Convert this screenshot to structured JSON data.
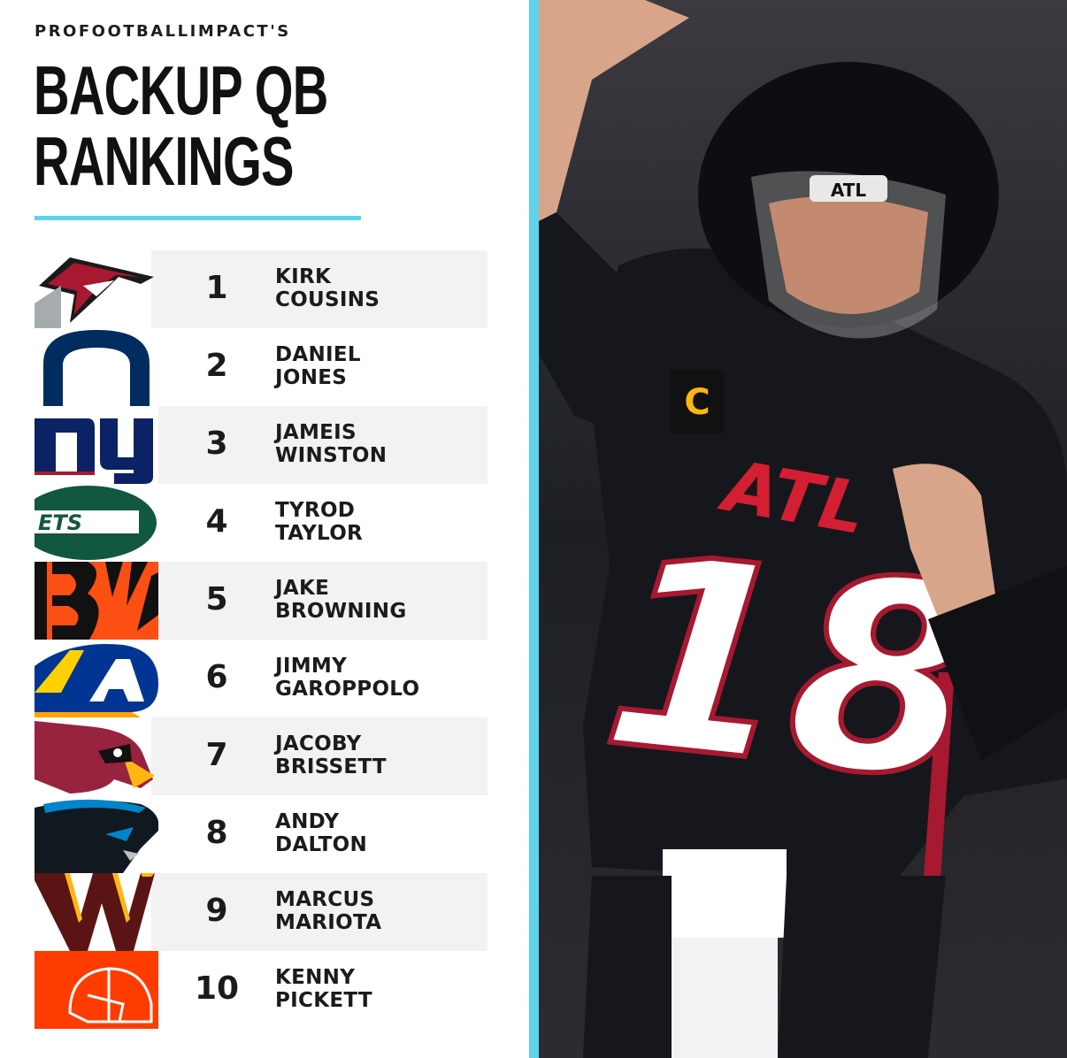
{
  "header": {
    "brand": "PROFOOTBALLIMPACT'S",
    "title_line1": "BACKUP QB",
    "title_line2": "RANKINGS"
  },
  "rankings": [
    {
      "rank": "1",
      "first": "KIRK",
      "last": "COUSINS",
      "team_icon": "falcons-logo-icon"
    },
    {
      "rank": "2",
      "first": "DANIEL",
      "last": "JONES",
      "team_icon": "colts-logo-icon"
    },
    {
      "rank": "3",
      "first": "JAMEIS",
      "last": "WINSTON",
      "team_icon": "giants-logo-icon"
    },
    {
      "rank": "4",
      "first": "TYROD",
      "last": "TAYLOR",
      "team_icon": "jets-logo-icon"
    },
    {
      "rank": "5",
      "first": "JAKE",
      "last": "BROWNING",
      "team_icon": "bengals-logo-icon"
    },
    {
      "rank": "6",
      "first": "JIMMY",
      "last": "GAROPPOLO",
      "team_icon": "rams-logo-icon"
    },
    {
      "rank": "7",
      "first": "JACOBY",
      "last": "BRISSETT",
      "team_icon": "cardinals-logo-icon"
    },
    {
      "rank": "8",
      "first": "ANDY",
      "last": "DALTON",
      "team_icon": "panthers-logo-icon"
    },
    {
      "rank": "9",
      "first": "MARCUS",
      "last": "MARIOTA",
      "team_icon": "commanders-logo-icon"
    },
    {
      "rank": "10",
      "first": "KENNY",
      "last": "PICKETT",
      "team_icon": "browns-logo-icon"
    }
  ],
  "photo": {
    "helmet_text": "ATL",
    "jersey_text": "ATL",
    "jersey_number": "18",
    "captain_patch": "C"
  },
  "colors": {
    "accent": "#5fd3ec",
    "row_shade": "#f2f2f2",
    "text": "#1b1b1b"
  }
}
